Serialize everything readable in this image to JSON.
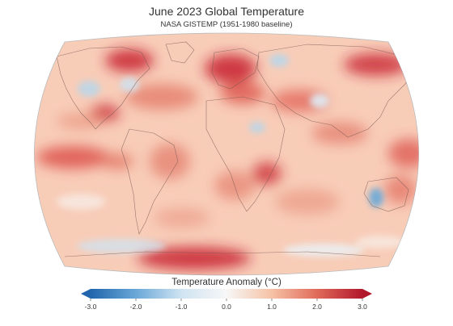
{
  "title": "June 2023 Global Temperature",
  "subtitle": "NASA GISTEMP (1951-1980 baseline)",
  "colorbar": {
    "title": "Temperature Anomaly (°C)",
    "min": -3.0,
    "max": 3.0,
    "ticks": [
      "-3.0",
      "-2.0",
      "-1.0",
      "0.0",
      "1.0",
      "2.0",
      "3.0"
    ],
    "tick_values": [
      -3,
      -2,
      -1,
      0,
      1,
      2,
      3
    ],
    "color_stops": [
      "#2166ac",
      "#6aa8d8",
      "#cfe3f1",
      "#f7f7f7",
      "#f6c2a6",
      "#e06a5a",
      "#b2182b"
    ],
    "extend": "both"
  },
  "map": {
    "projection": "robinson",
    "ocean_base_color": "#f7c7b2",
    "land_outline_color": "#7a5a50",
    "cool_color": "#b9d6ea",
    "hot_color": "#c8202f"
  }
}
